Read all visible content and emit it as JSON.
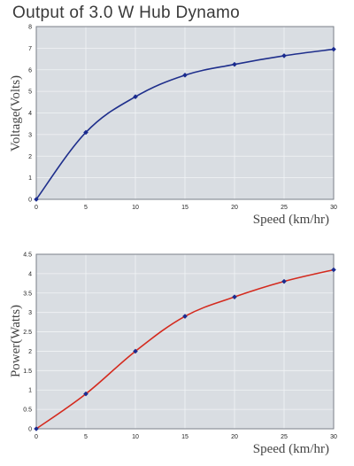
{
  "title": "Output of 3.0 W Hub Dynamo",
  "colors": {
    "plot_bg": "#d9dde2",
    "frame": "#7a7f88",
    "grid": "#f2f4f6",
    "voltage_line": "#1f2f8c",
    "power_line": "#d42a1e",
    "marker": "#1a2b8f"
  },
  "chart_data": [
    {
      "type": "line",
      "x": [
        0,
        5,
        10,
        15,
        20,
        25,
        30
      ],
      "series": [
        {
          "values": [
            0,
            3.1,
            4.75,
            5.75,
            6.25,
            6.65,
            6.95
          ]
        }
      ],
      "xlabel": "Speed (km/hr)",
      "ylabel": "Voltage(Volts)",
      "xlim": [
        0,
        30
      ],
      "ylim": [
        0,
        8
      ],
      "xticks": [
        0,
        5,
        10,
        15,
        20,
        25,
        30
      ],
      "yticks": [
        0,
        1,
        2,
        3,
        4,
        5,
        6,
        7,
        8
      ],
      "grid": true,
      "line_color": "#1f2f8c"
    },
    {
      "type": "line",
      "x": [
        0,
        5,
        10,
        15,
        20,
        25,
        30
      ],
      "series": [
        {
          "values": [
            0,
            0.9,
            2.0,
            2.9,
            3.4,
            3.8,
            4.1
          ]
        }
      ],
      "xlabel": "Speed (km/hr)",
      "ylabel": "Power(Watts)",
      "xlim": [
        0,
        30
      ],
      "ylim": [
        0,
        4.5
      ],
      "xticks": [
        0,
        5,
        10,
        15,
        20,
        25,
        30
      ],
      "yticks": [
        0,
        0.5,
        1,
        1.5,
        2,
        2.5,
        3,
        3.5,
        4,
        4.5
      ],
      "grid": true,
      "line_color": "#d42a1e"
    }
  ]
}
